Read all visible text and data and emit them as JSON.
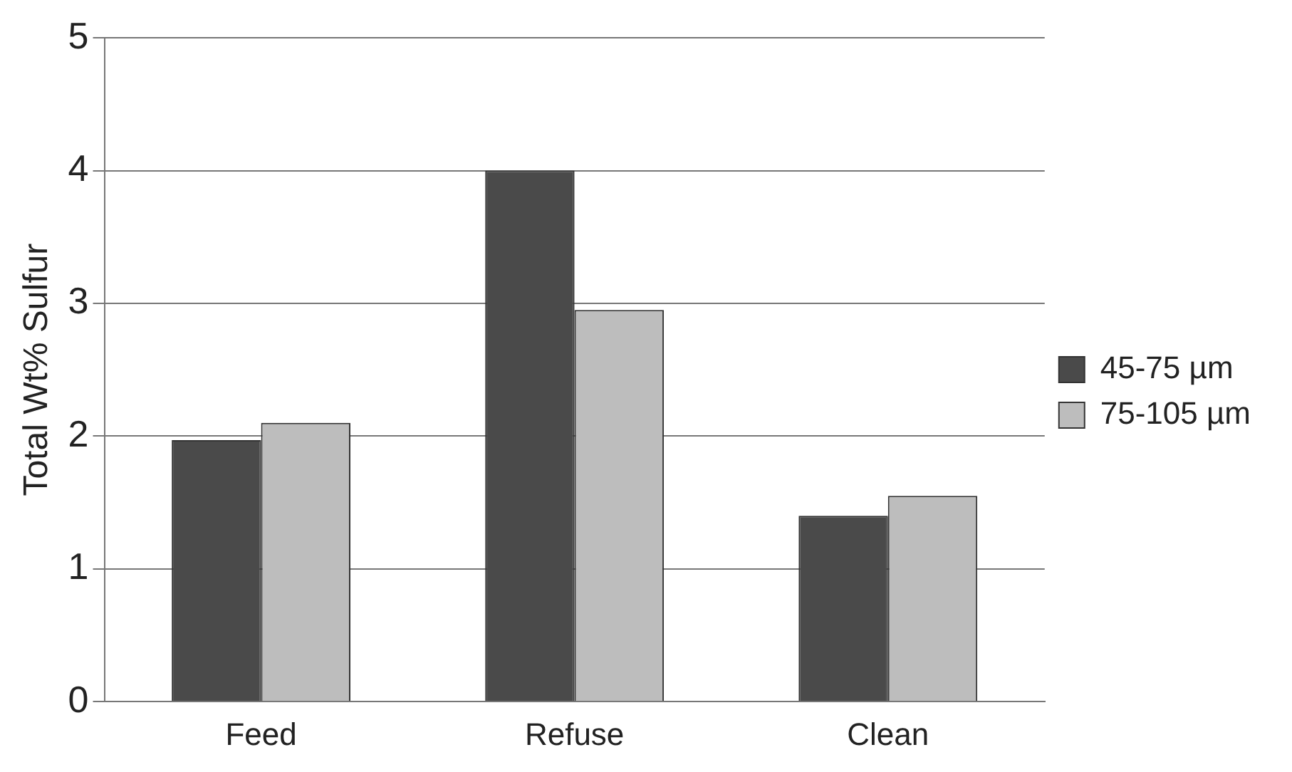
{
  "chart_data": {
    "type": "bar",
    "ylabel": "Total Wt% Sulfur",
    "categories": [
      "Feed",
      "Refuse",
      "Clean"
    ],
    "series": [
      {
        "name": "45-75 µm",
        "color": "#4a4a4a",
        "values": [
          1.97,
          4.0,
          1.4
        ]
      },
      {
        "name": "75-105 µm",
        "color": "#bdbdbd",
        "values": [
          2.1,
          2.95,
          1.55
        ]
      }
    ],
    "ylim": [
      0,
      5
    ],
    "yticks": [
      0,
      1,
      2,
      3,
      4,
      5
    ],
    "grid": "y",
    "legend": "right"
  }
}
